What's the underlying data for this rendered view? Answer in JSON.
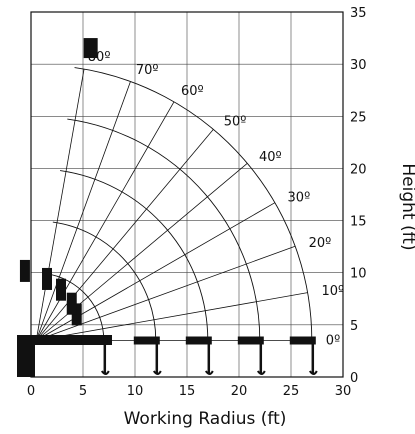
{
  "chart_data": {
    "type": "line",
    "title": "",
    "xlabel": "Working Radius (ft)",
    "ylabel": "Height (ft)",
    "xlim": [
      0,
      30
    ],
    "ylim": [
      0,
      35
    ],
    "x_ticks": [
      0,
      5,
      10,
      15,
      20,
      25,
      30
    ],
    "y_ticks": [
      0,
      5,
      10,
      15,
      20,
      25,
      30,
      35
    ],
    "x_tick_labels": [
      "0",
      "5",
      "10",
      "15",
      "20",
      "25",
      "30"
    ],
    "y_tick_labels": [
      "0",
      "5",
      "10",
      "15",
      "20",
      "25",
      "30",
      "35"
    ],
    "grid": true,
    "boom_pivot": {
      "x": 0.5,
      "y": 3.5
    },
    "boom_angles": [
      {
        "angle": 0,
        "label": "0º"
      },
      {
        "angle": 10,
        "label": "10º"
      },
      {
        "angle": 20,
        "label": "20º"
      },
      {
        "angle": 30,
        "label": "30º"
      },
      {
        "angle": 40,
        "label": "40º"
      },
      {
        "angle": 50,
        "label": "50º"
      },
      {
        "angle": 60,
        "label": "60º"
      },
      {
        "angle": 70,
        "label": "70º"
      },
      {
        "angle": 80,
        "label": "80º"
      }
    ],
    "reach_arcs": [
      {
        "radius": 6.5
      },
      {
        "radius": 11.5
      },
      {
        "radius": 16.5
      },
      {
        "radius": 21.5
      },
      {
        "radius": 26.5
      }
    ],
    "max_reach": 26.5
  }
}
